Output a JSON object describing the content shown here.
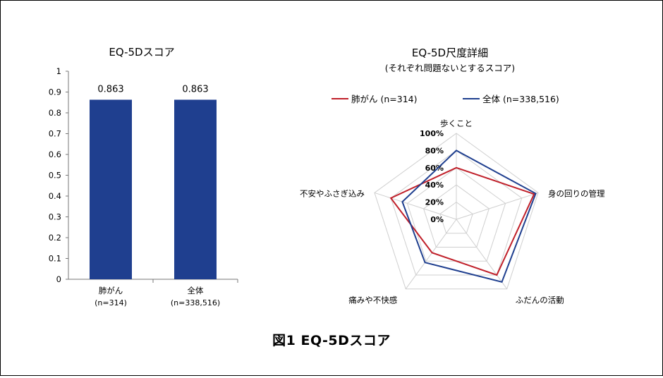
{
  "figure_caption": "図1 EQ-5Dスコア",
  "chart_data": [
    {
      "type": "bar",
      "title": "EQ-5Dスコア",
      "categories": [
        {
          "label": "肺がん",
          "sublabel": "(n=314)"
        },
        {
          "label": "全体",
          "sublabel": "(n=338,516)"
        }
      ],
      "values": [
        0.863,
        0.863
      ],
      "data_labels": [
        "0.863",
        "0.863"
      ],
      "ylim": [
        0,
        1
      ],
      "yticks": [
        "0",
        "0.1",
        "0.2",
        "0.3",
        "0.4",
        "0.5",
        "0.6",
        "0.7",
        "0.8",
        "0.9",
        "1"
      ],
      "grid": false,
      "bar_color": "#1f3f8f"
    },
    {
      "type": "radar",
      "title": "EQ-5D尺度詳細",
      "subtitle": "(それぞれ問題ないとするスコア)",
      "axes": [
        "歩くこと",
        "身の回りの管理",
        "ふだんの活動",
        "痛みや不快感",
        "不安やふさぎ込み"
      ],
      "rlim": [
        0,
        100
      ],
      "rticks": [
        "0%",
        "20%",
        "40%",
        "60%",
        "80%",
        "100%"
      ],
      "legend_position": "top",
      "series": [
        {
          "name": "肺がん (n=314)",
          "color": "#c0202a",
          "values": [
            60,
            95,
            80,
            48,
            80
          ]
        },
        {
          "name": "全体 (n=338,516)",
          "color": "#1f3f8f",
          "values": [
            80,
            97,
            90,
            62,
            66
          ]
        }
      ]
    }
  ]
}
